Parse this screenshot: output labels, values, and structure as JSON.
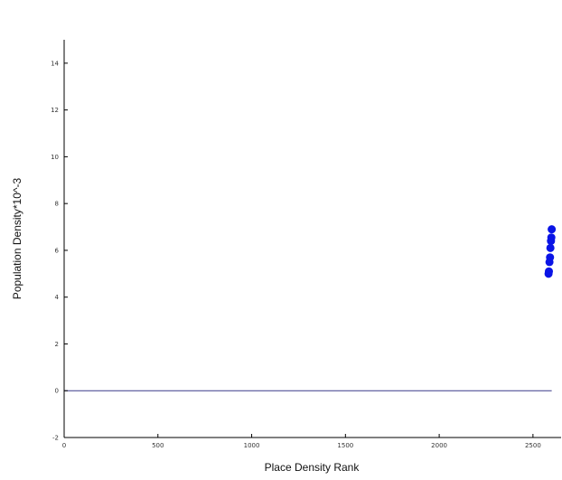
{
  "chart_data": {
    "type": "scatter",
    "title": "",
    "xlabel": "Place Density Rank",
    "ylabel": "Population Density*10^-3",
    "xlim": [
      0,
      2650
    ],
    "ylim": [
      -2,
      15
    ],
    "xticks": [
      0,
      500,
      1000,
      1500,
      2000,
      2500
    ],
    "yticks": [
      -2,
      0,
      2,
      4,
      6,
      8,
      10,
      12,
      14
    ],
    "grid": false,
    "legend": "none",
    "colors": {
      "points": "#0a14e6",
      "reference_line": "#3a3a8a",
      "axes": "#000000"
    },
    "reference_line": {
      "y": 0,
      "x_range": [
        0,
        2600
      ]
    },
    "series": [
      {
        "points": [
          {
            "x": 2583,
            "y": 5.0
          },
          {
            "x": 2585,
            "y": 5.1
          },
          {
            "x": 2588,
            "y": 5.5
          },
          {
            "x": 2591,
            "y": 5.7
          },
          {
            "x": 2593,
            "y": 6.1
          },
          {
            "x": 2596,
            "y": 6.4
          },
          {
            "x": 2598,
            "y": 6.55
          },
          {
            "x": 2600,
            "y": 6.9
          }
        ]
      }
    ]
  }
}
